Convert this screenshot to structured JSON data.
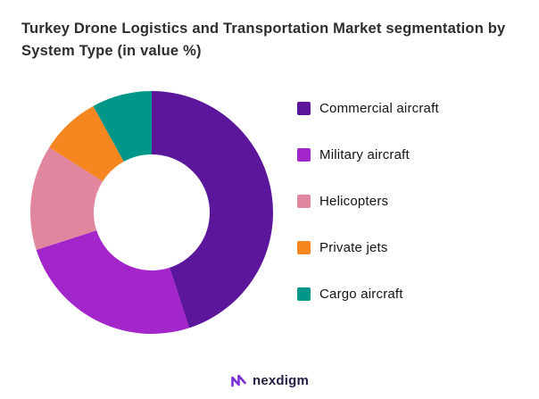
{
  "title": "Turkey Drone Logistics and Transportation Market segmentation by System Type (in value %)",
  "footer": {
    "brand": "nexdigm",
    "brand_color": "#232043",
    "logo_color": "#7a30d6"
  },
  "chart_data": {
    "type": "pie",
    "donut": true,
    "title": "Turkey Drone Logistics and Transportation Market segmentation by System Type (in value %)",
    "labels": [
      "Commercial aircraft",
      "Military aircraft",
      "Helicopters",
      "Private jets",
      "Cargo aircraft"
    ],
    "values": [
      45,
      25,
      14,
      8,
      8
    ],
    "colors": [
      "#5c169c",
      "#a226c9",
      "#e0879f",
      "#f6861f",
      "#00978b"
    ],
    "legend_position": "right",
    "start_angle_deg": 0,
    "direction": "clockwise",
    "inner_radius_ratio": 0.48
  }
}
